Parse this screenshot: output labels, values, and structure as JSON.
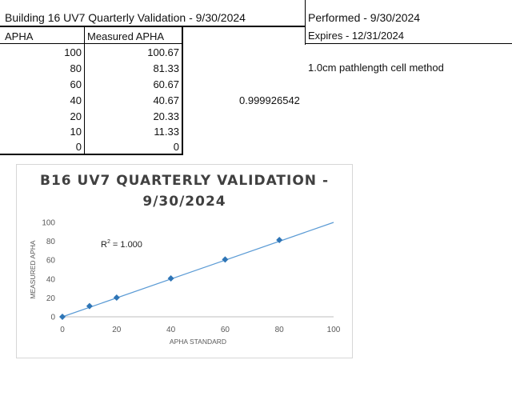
{
  "header": {
    "title": "Building 16 UV7 Quarterly Validation  -  9/30/2024",
    "performed": "Performed - 9/30/2024",
    "expires": "Expires - 12/31/2024"
  },
  "table": {
    "columns": [
      "APHA",
      "Measured APHA"
    ],
    "rows": [
      [
        "100",
        "100.67"
      ],
      [
        "80",
        "81.33"
      ],
      [
        "60",
        "60.67"
      ],
      [
        "40",
        "40.67"
      ],
      [
        "20",
        "20.33"
      ],
      [
        "10",
        "11.33"
      ],
      [
        "0",
        "0"
      ]
    ]
  },
  "notes": {
    "method": "1.0cm pathlength cell method",
    "correlation": "0.999926542"
  },
  "chart_data": {
    "type": "scatter",
    "title_line1": "B16 UV7 QUARTERLY VALIDATION -",
    "title_line2": "9/30/2024",
    "xlabel": "APHA STANDARD",
    "ylabel": "MEASURED APHA",
    "x_ticks": [
      "0",
      "20",
      "40",
      "60",
      "80",
      "100"
    ],
    "y_ticks": [
      "0",
      "20",
      "40",
      "60",
      "80",
      "100"
    ],
    "xlim": [
      0,
      100
    ],
    "ylim": [
      0,
      100
    ],
    "r2_label": "R",
    "r2_sup": "2",
    "r2_value": " = 1.000",
    "series": [
      {
        "x": [
          0,
          10,
          20,
          40,
          60,
          80
        ],
        "y": [
          0,
          11.33,
          20.33,
          40.67,
          60.67,
          81.33
        ]
      }
    ],
    "trendline": {
      "x": [
        0,
        100
      ],
      "y": [
        0,
        100
      ]
    },
    "marker_color": "#2e75b6",
    "line_color": "#5b9bd5",
    "grid": false
  }
}
